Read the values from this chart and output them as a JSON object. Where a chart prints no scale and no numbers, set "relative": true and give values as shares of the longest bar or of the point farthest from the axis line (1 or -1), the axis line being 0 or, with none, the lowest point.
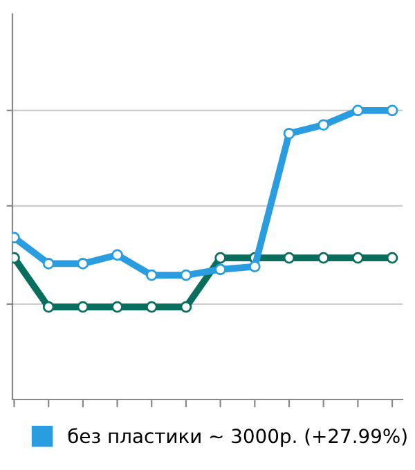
{
  "chart_data": {
    "type": "line",
    "relative": true,
    "categories": [
      null,
      null,
      null,
      null,
      null,
      null,
      null,
      null,
      null,
      null,
      null,
      null
    ],
    "series": [
      {
        "name": "без пластики ~ 3000р. (+27.99%)",
        "color": "#2a9de0",
        "values": [
          0.56,
          0.47,
          0.47,
          0.5,
          0.43,
          0.43,
          0.45,
          0.46,
          0.92,
          0.95,
          1,
          1
        ]
      },
      {
        "color": "#0a6e5e",
        "values": [
          0.49,
          0.32,
          0.32,
          0.32,
          0.32,
          0.32,
          0.49,
          0.49,
          0.49,
          0.49,
          0.49,
          0.49
        ]
      }
    ],
    "ref_lines": [
      {
        "axis": "y",
        "value": 0.33,
        "color": "#cccccc"
      },
      {
        "axis": "y",
        "value": 0.67,
        "color": "#cccccc"
      },
      {
        "axis": "y",
        "value": 1,
        "color": "#cccccc"
      }
    ],
    "legend": "bottom",
    "marker": "circle",
    "line_style": "solid",
    "tick_labels": false
  }
}
